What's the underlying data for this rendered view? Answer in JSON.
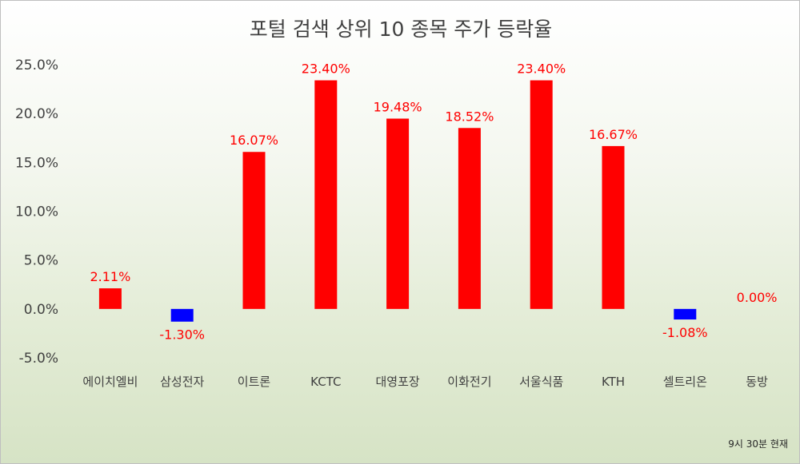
{
  "chart_data": {
    "type": "bar",
    "title": "포털 검색 상위 10 종목 주가 등락율",
    "categories": [
      "에이치엘비",
      "삼성전자",
      "이트론",
      "KCTC",
      "대영포장",
      "이화전기",
      "서울식품",
      "KTH",
      "셀트리온",
      "동방"
    ],
    "values": [
      2.11,
      -1.3,
      16.07,
      23.4,
      19.48,
      18.52,
      23.4,
      16.67,
      -1.08,
      0.0
    ],
    "data_labels": [
      "2.11%",
      "-1.30%",
      "16.07%",
      "23.40%",
      "19.48%",
      "18.52%",
      "23.40%",
      "16.67%",
      "-1.08%",
      "0.00%"
    ],
    "y_ticks": [
      25,
      20,
      15,
      10,
      5,
      0,
      -5
    ],
    "y_tick_labels": [
      "25.0%",
      "20.0%",
      "15.0%",
      "10.0%",
      "5.0%",
      "0.0%",
      "-5.0%"
    ],
    "ylim": [
      -5,
      25
    ],
    "xlabel": "",
    "ylabel": "",
    "grid": false,
    "legend": "none",
    "colors": {
      "positive_bar": "#ff0000",
      "negative_bar": "#0000ff",
      "data_label": "#ff0000",
      "tick_text": "#404040"
    }
  },
  "footnote": "9시 30분 현재"
}
